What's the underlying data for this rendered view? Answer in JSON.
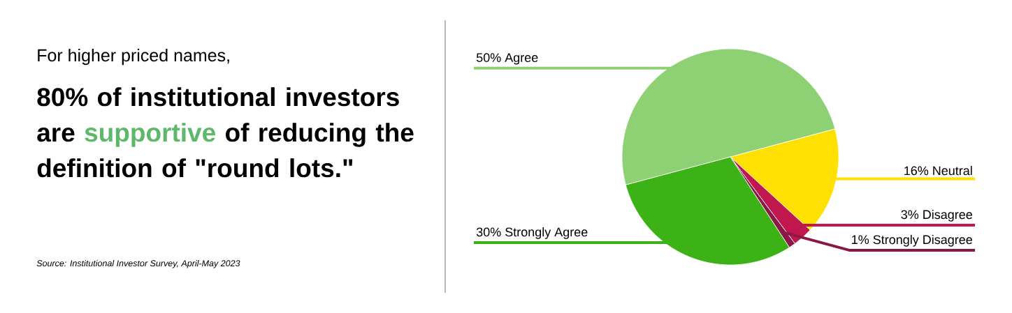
{
  "chart_data": {
    "type": "pie",
    "title": "For higher priced names,",
    "categories": [
      "16% Neutral",
      "3% Disagree",
      "1% Strongly Disagree",
      "30% Strongly Agree",
      "50% Agree"
    ],
    "values": [
      16,
      3,
      1,
      30,
      50
    ],
    "colors": [
      "#ffe000",
      "#c0184e",
      "#8a1847",
      "#3db217",
      "#8ed174"
    ],
    "annotations": [
      "80% of institutional investors are",
      "supportive",
      "of reducing the definition of \"round lots.\"",
      "Source: Institutional Investor Survey, April-May 2023"
    ]
  }
}
